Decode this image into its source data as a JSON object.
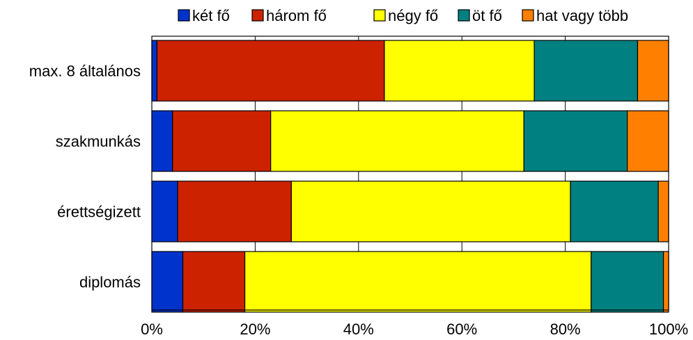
{
  "chart_data": {
    "type": "bar",
    "orientation": "horizontal",
    "stacked": true,
    "percent_scale": true,
    "categories": [
      "max. 8 általános",
      "szakmunkás",
      "érettségizett",
      "diplomás"
    ],
    "series": [
      {
        "name": "két fő",
        "color": "#0033cc",
        "values": [
          1,
          4,
          5,
          6
        ]
      },
      {
        "name": "három fő",
        "color": "#cc2200",
        "values": [
          44,
          19,
          22,
          12
        ]
      },
      {
        "name": "négy fő",
        "color": "#ffff00",
        "values": [
          29,
          49,
          54,
          67
        ]
      },
      {
        "name": "öt fő",
        "color": "#008080",
        "values": [
          20,
          20,
          17,
          14
        ]
      },
      {
        "name": "hat vagy több",
        "color": "#ff8000",
        "values": [
          6,
          8,
          2,
          1
        ]
      }
    ],
    "x_ticks": [
      "0%",
      "20%",
      "40%",
      "60%",
      "80%",
      "100%"
    ],
    "xlim": [
      0,
      100
    ],
    "grid": "vertical",
    "legend_position": "top"
  }
}
